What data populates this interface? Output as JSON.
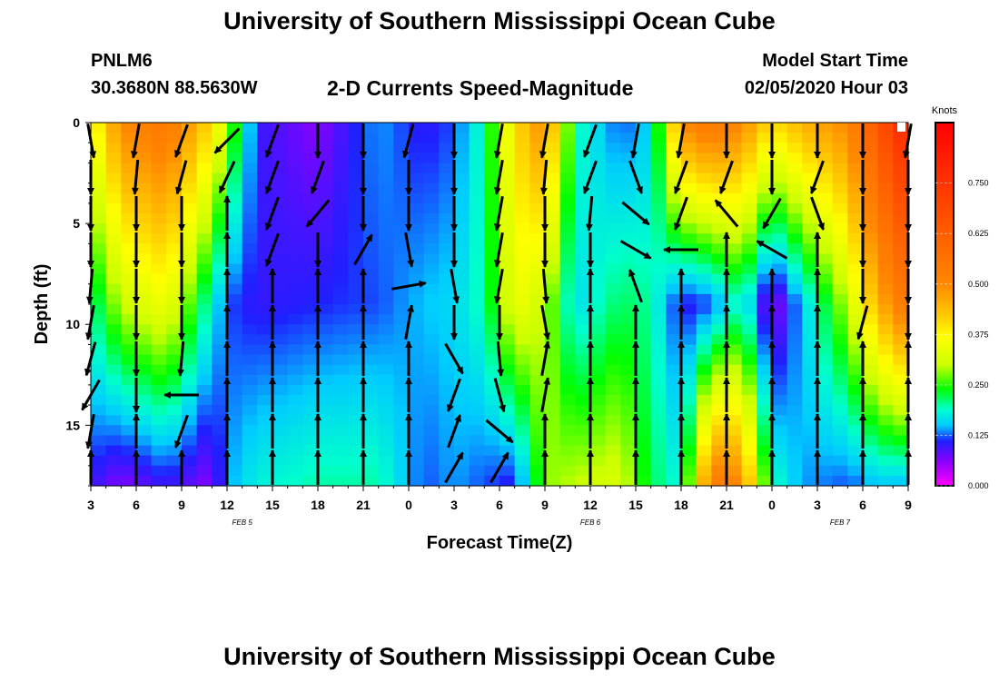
{
  "header": {
    "title_top": "University of Southern Mississippi Ocean Cube",
    "title_bottom": "University of Southern Mississippi Ocean Cube",
    "station_id": "PNLM6",
    "station_location": "30.3680N 88.5630W",
    "chart_title": "2-D Currents Speed-Magnitude",
    "model_start_label": "Model Start Time",
    "model_start_time": "02/05/2020 Hour 03"
  },
  "chart_data": {
    "type": "heatmap",
    "title": "2-D Currents Speed-Magnitude",
    "xlabel": "Forecast Time(Z)",
    "ylabel": "Depth (ft)",
    "x_tick_labels": [
      "3",
      "6",
      "9",
      "12",
      "15",
      "18",
      "21",
      "0",
      "3",
      "6",
      "9",
      "12",
      "15",
      "18",
      "21",
      "0",
      "3",
      "6",
      "9"
    ],
    "x_range_hours": [
      0,
      54
    ],
    "date_labels": [
      {
        "text": "FEB 5",
        "hour_offset": 10
      },
      {
        "text": "FEB 6",
        "hour_offset": 33
      },
      {
        "text": "FEB 7",
        "hour_offset": 49.5
      }
    ],
    "y_ticks": [
      0,
      5,
      10,
      15
    ],
    "y_range": [
      0,
      18
    ],
    "y_inverted": true,
    "colorbar": {
      "title": "Knots",
      "ticks": [
        "0.000",
        "0.125",
        "0.250",
        "0.375",
        "0.500",
        "0.625",
        "0.750"
      ],
      "tick_values": [
        0,
        0.125,
        0.25,
        0.375,
        0.5,
        0.625,
        0.75
      ],
      "range": [
        0,
        0.9
      ],
      "colormap": [
        [
          0.0,
          "#ff00ff"
        ],
        [
          0.06,
          "#8a00ff"
        ],
        [
          0.11,
          "#1f1fff"
        ],
        [
          0.15,
          "#00ccff"
        ],
        [
          0.19,
          "#00ffcc"
        ],
        [
          0.24,
          "#00ff00"
        ],
        [
          0.3,
          "#ccff00"
        ],
        [
          0.37,
          "#ffff00"
        ],
        [
          0.42,
          "#ffcc00"
        ],
        [
          0.5,
          "#ff8800"
        ],
        [
          0.65,
          "#ff5500"
        ],
        [
          0.9,
          "#ff0000"
        ]
      ]
    },
    "speed_profile_columns": [
      {
        "hour": 0,
        "top": 0.35,
        "mid": 0.2,
        "bot": 0.1
      },
      {
        "hour": 2,
        "top": 0.5,
        "mid": 0.3,
        "bot": 0.06
      },
      {
        "hour": 5,
        "top": 0.55,
        "mid": 0.35,
        "bot": 0.1
      },
      {
        "hour": 8,
        "top": 0.4,
        "mid": 0.18,
        "bot": 0.06
      },
      {
        "hour": 9,
        "top": 0.3,
        "mid": 0.12,
        "bot": 0.14
      },
      {
        "hour": 11,
        "top": 0.1,
        "mid": 0.1,
        "bot": 0.18
      },
      {
        "hour": 15,
        "top": 0.06,
        "mid": 0.11,
        "bot": 0.2
      },
      {
        "hour": 19,
        "top": 0.14,
        "mid": 0.12,
        "bot": 0.2
      },
      {
        "hour": 22,
        "top": 0.1,
        "mid": 0.15,
        "bot": 0.12
      },
      {
        "hour": 24,
        "top": 0.12,
        "mid": 0.16,
        "bot": 0.14
      },
      {
        "hour": 26,
        "top": 0.2,
        "mid": 0.2,
        "bot": 0.12
      },
      {
        "hour": 28,
        "top": 0.4,
        "mid": 0.35,
        "bot": 0.1
      },
      {
        "hour": 30,
        "top": 0.5,
        "mid": 0.3,
        "bot": 0.28
      },
      {
        "hour": 32,
        "top": 0.2,
        "mid": 0.16,
        "bot": 0.3
      },
      {
        "hour": 35,
        "top": 0.12,
        "mid": 0.22,
        "bot": 0.32
      },
      {
        "hour": 37,
        "top": 0.16,
        "mid": 0.2,
        "bot": 0.22
      },
      {
        "hour": 39,
        "top": 0.5,
        "mid": 0.1,
        "bot": 0.18
      },
      {
        "hour": 41,
        "top": 0.55,
        "mid": 0.12,
        "bot": 0.55
      },
      {
        "hour": 43,
        "top": 0.5,
        "mid": 0.2,
        "bot": 0.5
      },
      {
        "hour": 45,
        "top": 0.4,
        "mid": 0.05,
        "bot": 0.2
      },
      {
        "hour": 47,
        "top": 0.45,
        "mid": 0.15,
        "bot": 0.14
      },
      {
        "hour": 50,
        "top": 0.5,
        "mid": 0.3,
        "bot": 0.12
      },
      {
        "hour": 52,
        "top": 0.65,
        "mid": 0.45,
        "bot": 0.15
      },
      {
        "hour": 54,
        "top": 0.8,
        "mid": 0.55,
        "bot": 0.14
      }
    ],
    "vector_columns": [
      {
        "hour": 0,
        "dirs_deg": [
          170,
          180,
          180,
          180,
          185,
          190,
          195,
          210,
          190,
          0
        ]
      },
      {
        "hour": 3,
        "dirs_deg": [
          190,
          185,
          180,
          180,
          180,
          180,
          180,
          180,
          0,
          0
        ]
      },
      {
        "hour": 6,
        "dirs_deg": [
          200,
          195,
          180,
          180,
          180,
          180,
          185,
          270,
          200,
          0
        ]
      },
      {
        "hour": 9,
        "dirs_deg": [
          225,
          205,
          0,
          0,
          0,
          0,
          0,
          0,
          0,
          0
        ]
      },
      {
        "hour": 12,
        "dirs_deg": [
          200,
          200,
          200,
          200,
          0,
          0,
          0,
          0,
          0,
          0
        ]
      },
      {
        "hour": 15,
        "dirs_deg": [
          180,
          200,
          220,
          180,
          0,
          0,
          0,
          0,
          0,
          0
        ]
      },
      {
        "hour": 18,
        "dirs_deg": [
          180,
          180,
          180,
          30,
          0,
          0,
          0,
          0,
          0,
          0
        ]
      },
      {
        "hour": 21,
        "dirs_deg": [
          195,
          180,
          180,
          170,
          80,
          10,
          0,
          0,
          0,
          0
        ]
      },
      {
        "hour": 24,
        "dirs_deg": [
          180,
          180,
          180,
          180,
          170,
          180,
          150,
          200,
          20,
          30
        ]
      },
      {
        "hour": 27,
        "dirs_deg": [
          190,
          190,
          190,
          190,
          190,
          180,
          175,
          165,
          130,
          30
        ]
      },
      {
        "hour": 30,
        "dirs_deg": [
          190,
          185,
          180,
          180,
          175,
          170,
          10,
          10,
          0,
          0
        ]
      },
      {
        "hour": 33,
        "dirs_deg": [
          200,
          200,
          185,
          180,
          0,
          0,
          0,
          0,
          0,
          0
        ]
      },
      {
        "hour": 36,
        "dirs_deg": [
          190,
          160,
          130,
          120,
          340,
          0,
          0,
          0,
          0,
          0
        ]
      },
      {
        "hour": 39,
        "dirs_deg": [
          190,
          200,
          200,
          270,
          0,
          0,
          0,
          0,
          0,
          0
        ]
      },
      {
        "hour": 42,
        "dirs_deg": [
          180,
          200,
          320,
          0,
          0,
          0,
          0,
          0,
          0,
          0
        ]
      },
      {
        "hour": 45,
        "dirs_deg": [
          180,
          180,
          210,
          300,
          0,
          0,
          0,
          0,
          0,
          0
        ]
      },
      {
        "hour": 48,
        "dirs_deg": [
          180,
          200,
          160,
          0,
          0,
          0,
          0,
          0,
          0,
          0
        ]
      },
      {
        "hour": 51,
        "dirs_deg": [
          180,
          180,
          180,
          180,
          180,
          195,
          0,
          0,
          0,
          0
        ]
      },
      {
        "hour": 54,
        "dirs_deg": [
          190,
          180,
          180,
          180,
          180,
          180,
          0,
          0,
          0,
          0
        ]
      }
    ]
  }
}
